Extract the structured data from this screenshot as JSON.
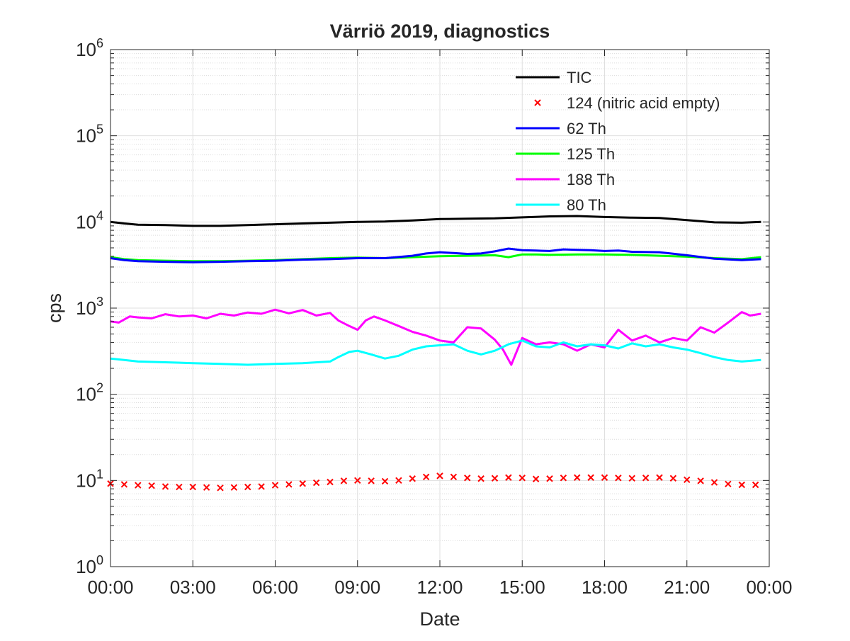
{
  "chart_data": {
    "type": "line",
    "title": "Värriö 2019, diagnostics",
    "xlabel": "Date",
    "ylabel": "cps",
    "y_scale": "log",
    "ylim": [
      1,
      1000000
    ],
    "y_tick_base": "10",
    "y_ticks": [
      {
        "exp": "0",
        "value": 1
      },
      {
        "exp": "1",
        "value": 10
      },
      {
        "exp": "2",
        "value": 100
      },
      {
        "exp": "3",
        "value": 1000
      },
      {
        "exp": "4",
        "value": 10000
      },
      {
        "exp": "5",
        "value": 100000
      },
      {
        "exp": "6",
        "value": 1000000
      }
    ],
    "x_unit": "hours",
    "xlim": [
      0,
      24
    ],
    "x_ticks": [
      {
        "label": "00:00",
        "value": 0
      },
      {
        "label": "03:00",
        "value": 3
      },
      {
        "label": "06:00",
        "value": 6
      },
      {
        "label": "09:00",
        "value": 9
      },
      {
        "label": "12:00",
        "value": 12
      },
      {
        "label": "15:00",
        "value": 15
      },
      {
        "label": "18:00",
        "value": 18
      },
      {
        "label": "21:00",
        "value": 21
      },
      {
        "label": "00:00",
        "value": 24
      }
    ],
    "grid": true,
    "minor_grid": true,
    "legend_position": "top-right",
    "series": [
      {
        "name": "TIC",
        "color": "#000000",
        "style": "line",
        "x": [
          0,
          0.5,
          1,
          2,
          3,
          4,
          5,
          6,
          7,
          8,
          9,
          10,
          11,
          12,
          13,
          14,
          15,
          16,
          17,
          18,
          19,
          20,
          21,
          22,
          23,
          23.7
        ],
        "y": [
          10000,
          9600,
          9300,
          9200,
          9000,
          9000,
          9200,
          9400,
          9600,
          9800,
          10000,
          10100,
          10400,
          10800,
          10900,
          11000,
          11300,
          11600,
          11700,
          11400,
          11200,
          11100,
          10500,
          9900,
          9800,
          10000
        ]
      },
      {
        "name": "124 (nitric acid empty)",
        "color": "#ff0000",
        "style": "marker-x",
        "x": [
          0,
          0.5,
          1,
          1.5,
          2,
          2.5,
          3,
          3.5,
          4,
          4.5,
          5,
          5.5,
          6,
          6.5,
          7,
          7.5,
          8,
          8.5,
          9,
          9.5,
          10,
          10.5,
          11,
          11.5,
          12,
          12.5,
          13,
          13.5,
          14,
          14.5,
          15,
          15.5,
          16,
          16.5,
          17,
          17.5,
          18,
          18.5,
          19,
          19.5,
          20,
          20.5,
          21,
          21.5,
          22,
          22.5,
          23,
          23.5
        ],
        "y": [
          9.2,
          9,
          8.8,
          8.7,
          8.5,
          8.4,
          8.4,
          8.3,
          8.2,
          8.3,
          8.4,
          8.5,
          8.8,
          9,
          9.2,
          9.4,
          9.6,
          9.9,
          10,
          9.9,
          9.8,
          10,
          10.5,
          11,
          11.3,
          11,
          10.7,
          10.5,
          10.6,
          10.8,
          10.7,
          10.4,
          10.5,
          10.7,
          10.8,
          10.8,
          10.8,
          10.7,
          10.6,
          10.7,
          10.8,
          10.6,
          10.2,
          9.9,
          9.5,
          9.1,
          8.9,
          8.9
        ]
      },
      {
        "name": "62 Th",
        "color": "#0000ff",
        "style": "line",
        "x": [
          0,
          0.5,
          1,
          2,
          3,
          4,
          5,
          6,
          7,
          8,
          9,
          10,
          11,
          11.5,
          12,
          12.5,
          13,
          13.5,
          14,
          14.5,
          15,
          15.5,
          16,
          16.5,
          17,
          17.5,
          18,
          18.5,
          19,
          20,
          21,
          22,
          23,
          23.7
        ],
        "y": [
          3800,
          3600,
          3500,
          3450,
          3400,
          3450,
          3500,
          3550,
          3650,
          3700,
          3800,
          3800,
          4050,
          4300,
          4450,
          4350,
          4250,
          4300,
          4550,
          4900,
          4700,
          4650,
          4600,
          4800,
          4750,
          4700,
          4600,
          4650,
          4500,
          4450,
          4100,
          3750,
          3600,
          3700
        ]
      },
      {
        "name": "125 Th",
        "color": "#00ff00",
        "style": "line",
        "x": [
          0,
          0.5,
          1,
          2,
          3,
          4,
          5,
          6,
          7,
          8,
          9,
          10,
          11,
          12,
          13,
          14,
          14.5,
          15,
          15.5,
          16,
          17,
          18,
          19,
          20,
          21,
          22,
          23,
          23.7
        ],
        "y": [
          3900,
          3700,
          3600,
          3550,
          3500,
          3500,
          3550,
          3600,
          3700,
          3800,
          3850,
          3800,
          3900,
          4000,
          4050,
          4100,
          3900,
          4200,
          4200,
          4150,
          4200,
          4200,
          4150,
          4050,
          3950,
          3800,
          3700,
          3900
        ]
      },
      {
        "name": "188 Th",
        "color": "#ff00ff",
        "style": "line",
        "x": [
          0,
          0.3,
          0.7,
          1,
          1.5,
          2,
          2.5,
          3,
          3.5,
          4,
          4.5,
          5,
          5.5,
          6,
          6.5,
          7,
          7.5,
          8,
          8.3,
          8.7,
          9,
          9.3,
          9.6,
          10,
          10.5,
          11,
          11.5,
          12,
          12.5,
          13,
          13.5,
          14,
          14.3,
          14.6,
          15,
          15.5,
          16,
          16.5,
          17,
          17.5,
          18,
          18.5,
          19,
          19.5,
          20,
          20.5,
          21,
          21.5,
          22,
          22.5,
          23,
          23.3,
          23.7
        ],
        "y": [
          700,
          680,
          800,
          780,
          760,
          850,
          800,
          820,
          760,
          860,
          820,
          890,
          860,
          960,
          870,
          950,
          820,
          880,
          720,
          620,
          560,
          720,
          800,
          720,
          620,
          530,
          480,
          420,
          400,
          600,
          580,
          430,
          330,
          220,
          450,
          380,
          400,
          380,
          320,
          380,
          350,
          560,
          420,
          480,
          400,
          450,
          420,
          600,
          520,
          680,
          900,
          820,
          860
        ]
      },
      {
        "name": "80 Th",
        "color": "#00ffff",
        "style": "line",
        "x": [
          0,
          0.5,
          1,
          2,
          3,
          4,
          5,
          6,
          7,
          8,
          8.3,
          8.7,
          9,
          9.5,
          10,
          10.5,
          11,
          11.5,
          12,
          12.5,
          13,
          13.5,
          14,
          14.5,
          15,
          15.5,
          16,
          16.5,
          17,
          17.5,
          18,
          18.5,
          19,
          19.5,
          20,
          20.5,
          21,
          21.5,
          22,
          22.5,
          23,
          23.7
        ],
        "y": [
          260,
          250,
          240,
          235,
          230,
          225,
          220,
          225,
          230,
          240,
          270,
          310,
          320,
          290,
          260,
          280,
          330,
          360,
          370,
          380,
          320,
          290,
          320,
          380,
          420,
          360,
          350,
          400,
          360,
          380,
          370,
          340,
          390,
          360,
          380,
          350,
          330,
          300,
          270,
          250,
          240,
          250
        ]
      }
    ]
  }
}
